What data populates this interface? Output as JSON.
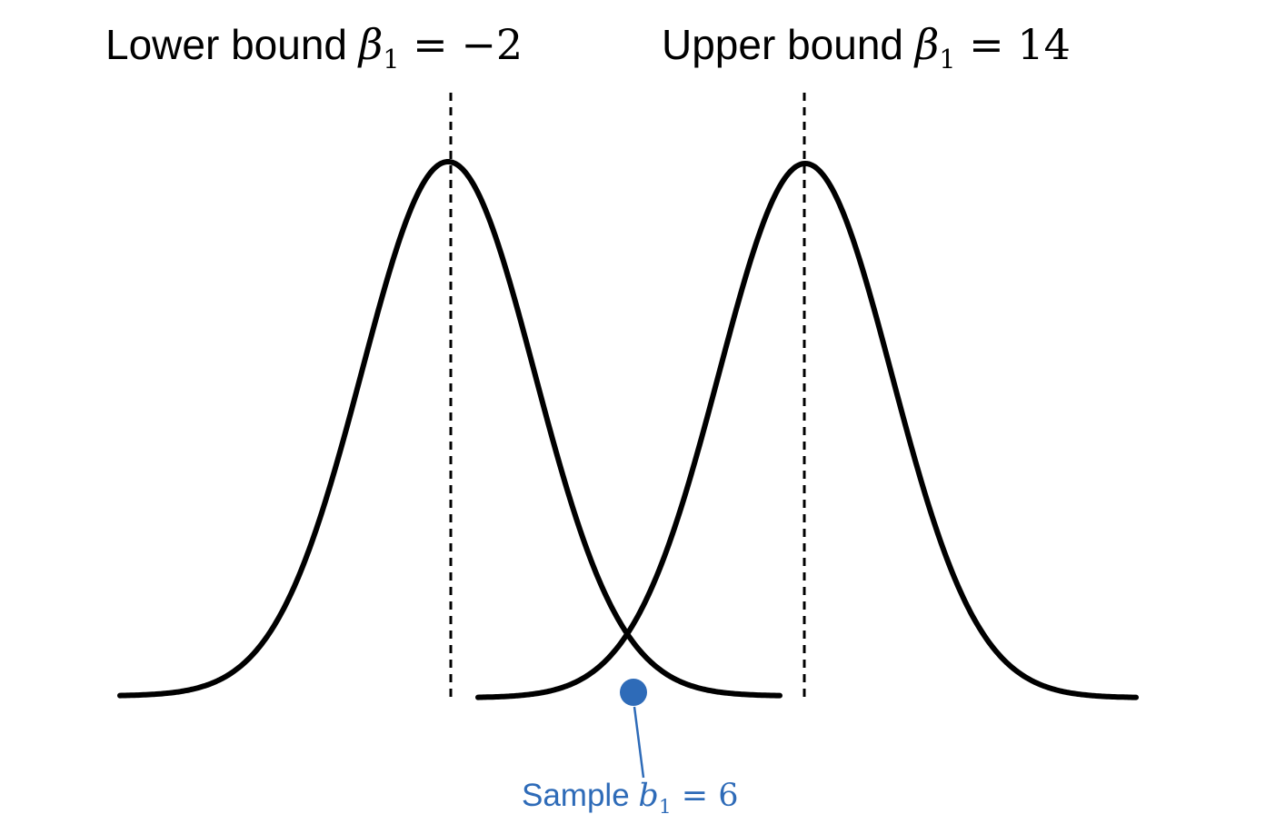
{
  "lower_bound": {
    "text": "Lower bound ",
    "symbol": "β",
    "subscript": "1",
    "relation": " = ",
    "value": "−2"
  },
  "upper_bound": {
    "text": "Upper bound ",
    "symbol": "β",
    "subscript": "1",
    "relation": " = ",
    "value": "14"
  },
  "sample": {
    "text": "Sample ",
    "symbol": "b",
    "subscript": "1",
    "relation": " = ",
    "value": "6"
  },
  "colors": {
    "curve": "#000000",
    "marker": "#2e6bb8",
    "sample_label": "#2e6bb8"
  }
}
